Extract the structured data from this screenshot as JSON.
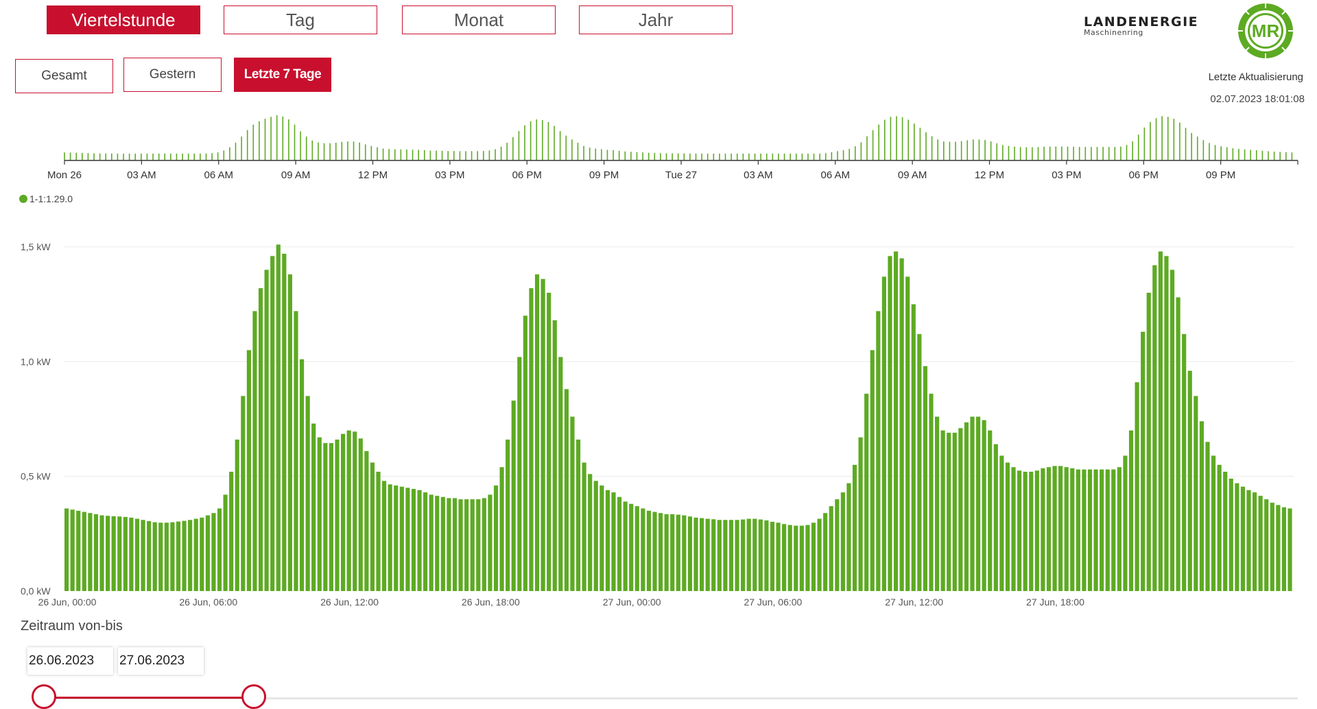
{
  "period_buttons": [
    "Viertelstunde",
    "Tag",
    "Monat",
    "Jahr"
  ],
  "range_buttons": [
    "Gesamt",
    "Gestern",
    "Letzte 7 Tage"
  ],
  "brand": {
    "name": "LANDENERGIE",
    "subtitle": "Maschinenring",
    "logo_text": "MR"
  },
  "last_update": {
    "label": "Letzte Aktualisierung",
    "value": "02.07.2023 18:01:08"
  },
  "legend": {
    "series": "1-1:1.29.0"
  },
  "range": {
    "label": "Zeitraum von-bis",
    "from": "26.06.2023",
    "to": "27.06.2023"
  },
  "slider": {
    "start_fraction": 0.0,
    "end_fraction": 0.168
  },
  "colors": {
    "accent": "#c8102e",
    "bar": "#5daa23",
    "grid": "#e9e9e9"
  },
  "chart_data": [
    {
      "type": "bar",
      "role": "navigator",
      "x_tick_labels": [
        "Mon 26",
        "03 AM",
        "06 AM",
        "09 AM",
        "12 PM",
        "03 PM",
        "06 PM",
        "09 PM",
        "Tue 27",
        "03 AM",
        "06 AM",
        "09 AM",
        "12 PM",
        "03 PM",
        "06 PM",
        "09 PM"
      ],
      "note_series": "same series as main chart"
    },
    {
      "type": "bar",
      "role": "main",
      "y_tick_labels": [
        "0,0 kW",
        "0,5 kW",
        "1,0 kW",
        "1,5 kW"
      ],
      "ylim": [
        0,
        1.5
      ],
      "x_tick_labels": [
        "26 Jun, 00:00",
        "26 Jun, 06:00",
        "26 Jun, 12:00",
        "26 Jun, 18:00",
        "27 Jun, 00:00",
        "27 Jun, 06:00",
        "27 Jun, 12:00",
        "27 Jun, 18:00"
      ],
      "x_start": "26 Jun, 00:00",
      "x_interval_minutes": 15,
      "series": [
        {
          "name": "1-1:1.29.0",
          "unit": "kW",
          "values": [
            0.36,
            0.355,
            0.35,
            0.345,
            0.34,
            0.335,
            0.33,
            0.328,
            0.326,
            0.325,
            0.323,
            0.32,
            0.315,
            0.31,
            0.305,
            0.3,
            0.298,
            0.298,
            0.3,
            0.303,
            0.306,
            0.31,
            0.315,
            0.32,
            0.33,
            0.34,
            0.36,
            0.42,
            0.52,
            0.66,
            0.85,
            1.05,
            1.22,
            1.32,
            1.4,
            1.46,
            1.51,
            1.47,
            1.38,
            1.22,
            1.01,
            0.85,
            0.73,
            0.67,
            0.645,
            0.645,
            0.66,
            0.685,
            0.7,
            0.695,
            0.665,
            0.61,
            0.56,
            0.52,
            0.48,
            0.465,
            0.46,
            0.455,
            0.45,
            0.445,
            0.44,
            0.43,
            0.42,
            0.415,
            0.41,
            0.405,
            0.405,
            0.4,
            0.4,
            0.4,
            0.4,
            0.405,
            0.42,
            0.46,
            0.54,
            0.66,
            0.83,
            1.02,
            1.2,
            1.32,
            1.38,
            1.36,
            1.3,
            1.18,
            1.02,
            0.88,
            0.76,
            0.66,
            0.56,
            0.51,
            0.48,
            0.46,
            0.44,
            0.43,
            0.41,
            0.39,
            0.38,
            0.37,
            0.36,
            0.35,
            0.345,
            0.34,
            0.335,
            0.335,
            0.333,
            0.33,
            0.325,
            0.32,
            0.318,
            0.315,
            0.313,
            0.31,
            0.31,
            0.31,
            0.31,
            0.312,
            0.315,
            0.315,
            0.312,
            0.308,
            0.302,
            0.298,
            0.292,
            0.288,
            0.285,
            0.285,
            0.288,
            0.298,
            0.315,
            0.34,
            0.37,
            0.4,
            0.43,
            0.47,
            0.55,
            0.67,
            0.86,
            1.05,
            1.22,
            1.37,
            1.46,
            1.48,
            1.45,
            1.37,
            1.25,
            1.12,
            0.98,
            0.86,
            0.76,
            0.7,
            0.69,
            0.69,
            0.71,
            0.735,
            0.76,
            0.76,
            0.745,
            0.7,
            0.64,
            0.59,
            0.56,
            0.54,
            0.525,
            0.52,
            0.52,
            0.525,
            0.535,
            0.54,
            0.545,
            0.545,
            0.54,
            0.535,
            0.53,
            0.53,
            0.53,
            0.53,
            0.53,
            0.53,
            0.53,
            0.54,
            0.59,
            0.7,
            0.91,
            1.13,
            1.3,
            1.42,
            1.48,
            1.46,
            1.4,
            1.28,
            1.12,
            0.96,
            0.85,
            0.74,
            0.65,
            0.59,
            0.55,
            0.52,
            0.49,
            0.47,
            0.455,
            0.44,
            0.43,
            0.415,
            0.4,
            0.385,
            0.375,
            0.365,
            0.36
          ]
        }
      ]
    }
  ]
}
